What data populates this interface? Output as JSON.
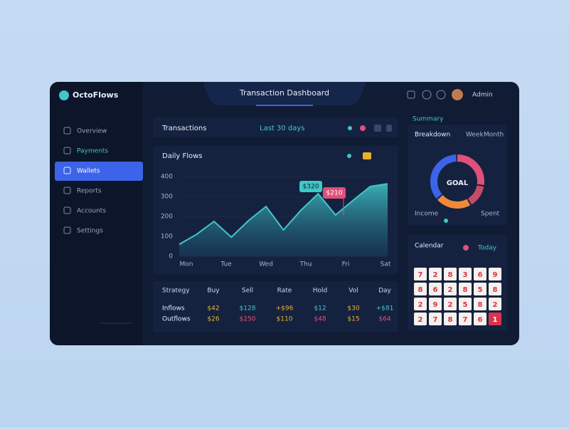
{
  "brand": "OctoFlows",
  "header": {
    "title": "Transaction Dashboard",
    "user": "Admin"
  },
  "sidebar": [
    "Overview",
    "Payments",
    "Wallets",
    "Reports",
    "Accounts",
    "Settings"
  ],
  "toolbar": {
    "title": "Transactions",
    "range": "Last 30 days"
  },
  "trend_chart": {
    "title": "Daily Flows",
    "x_labels": [
      "Mon",
      "Tue",
      "Wed",
      "Thu",
      "Fri",
      "Sat"
    ],
    "values": [
      60,
      110,
      175,
      96,
      180,
      250,
      132,
      230,
      314,
      207,
      280,
      350,
      364
    ],
    "ylim": [
      0,
      400
    ],
    "yticks": [
      0,
      100,
      200,
      300,
      400
    ],
    "color": "#3fc8c8",
    "annotations": [
      "$320",
      "$210"
    ]
  },
  "table": {
    "columns": [
      "Strategy",
      "Buy",
      "Sell",
      "Rate",
      "Hold",
      "Vol",
      "Day"
    ],
    "rows": [
      [
        "Inflows",
        "$42",
        "$128",
        "+$96",
        "$12",
        "$30",
        "+$81"
      ],
      [
        "Outflows",
        "$26",
        "$250",
        "$110",
        "$48",
        "$15",
        "$64"
      ]
    ]
  },
  "summary_label": "Summary",
  "donut": {
    "title": "Breakdown",
    "tabs": [
      "Week",
      "Month"
    ],
    "center": "GOAL",
    "values": [
      28,
      14,
      22,
      36
    ],
    "colors": [
      "#e0507a",
      "#c84a6a",
      "#f08a3a",
      "#3d63e8"
    ],
    "legend": [
      "Income",
      "Spent"
    ]
  },
  "calendar": {
    "title": "Calendar",
    "tag": "Today",
    "days": [
      [
        7,
        2,
        8,
        3,
        6,
        9
      ],
      [
        8,
        6,
        2,
        8,
        5,
        8
      ],
      [
        2,
        9,
        2,
        5,
        8,
        2
      ],
      [
        2,
        7,
        8,
        7,
        6,
        1
      ]
    ]
  }
}
